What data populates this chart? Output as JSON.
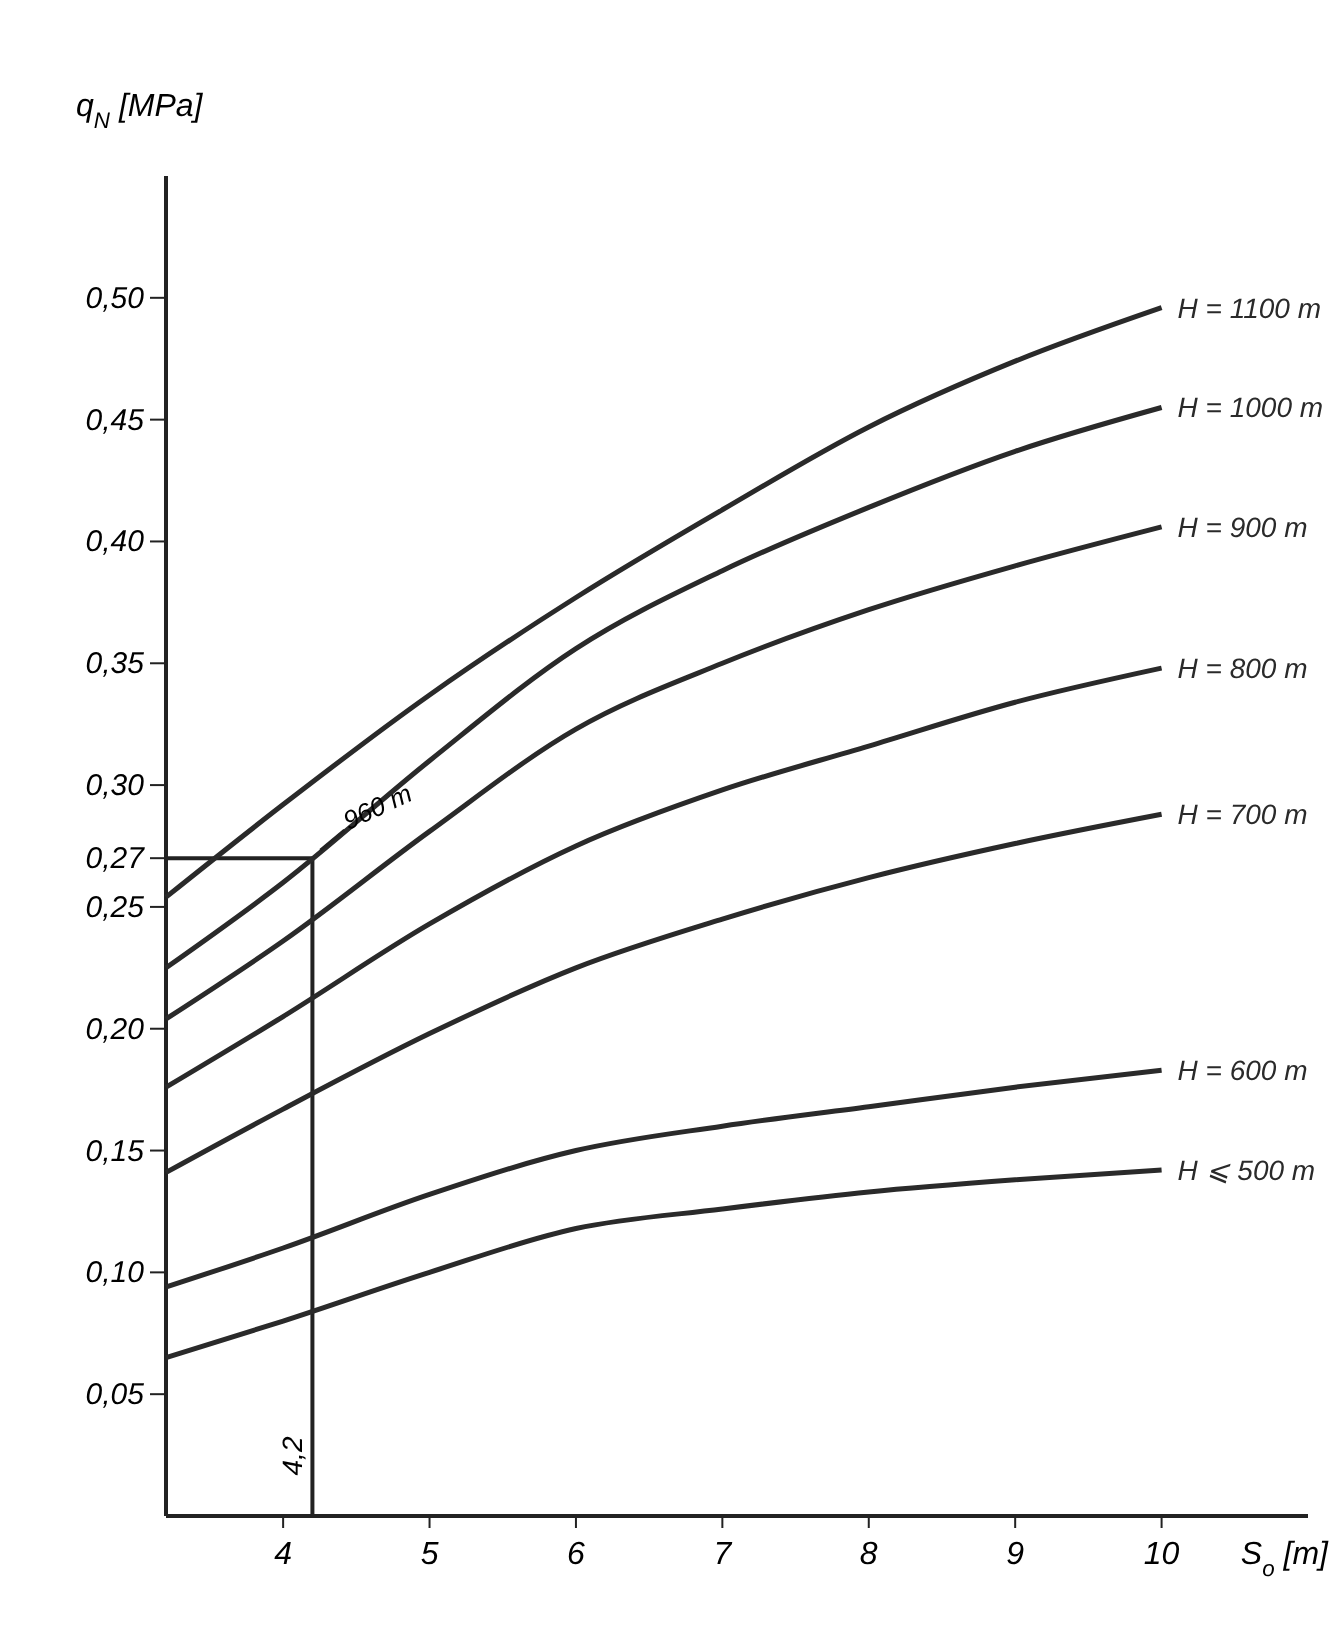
{
  "chart_data": {
    "type": "line",
    "xlabel": "S$_{o}$ [m]",
    "ylabel": "q$_{N}$ [MPa]",
    "x": [
      3.2,
      4,
      5,
      6,
      7,
      8,
      9,
      10
    ],
    "series": [
      {
        "name": "H = 1100 m",
        "color": "#2a2a2a",
        "values": [
          0.254,
          0.292,
          0.337,
          0.377,
          0.413,
          0.447,
          0.474,
          0.496
        ]
      },
      {
        "name": "H = 1000 m",
        "color": "#2a2a2a",
        "values": [
          0.225,
          0.26,
          0.31,
          0.356,
          0.388,
          0.414,
          0.437,
          0.455
        ]
      },
      {
        "name": "H = 900 m",
        "color": "#2a2a2a",
        "values": [
          0.204,
          0.236,
          0.281,
          0.323,
          0.35,
          0.372,
          0.39,
          0.406
        ]
      },
      {
        "name": "H = 800 m",
        "color": "#2a2a2a",
        "values": [
          0.176,
          0.205,
          0.243,
          0.275,
          0.298,
          0.316,
          0.334,
          0.348
        ]
      },
      {
        "name": "H = 700 m",
        "color": "#2a2a2a",
        "values": [
          0.141,
          0.167,
          0.198,
          0.225,
          0.245,
          0.262,
          0.276,
          0.288
        ]
      },
      {
        "name": "H = 600 m",
        "color": "#2a2a2a",
        "values": [
          0.094,
          0.11,
          0.132,
          0.15,
          0.16,
          0.168,
          0.176,
          0.183
        ]
      },
      {
        "name": "H ⩽ 500 m",
        "color": "#2a2a2a",
        "values": [
          0.065,
          0.08,
          0.1,
          0.118,
          0.126,
          0.133,
          0.138,
          0.142
        ]
      }
    ],
    "xlim": [
      3.2,
      11
    ],
    "xticks": [
      4,
      5,
      6,
      7,
      8,
      9,
      10
    ],
    "ylim": [
      0,
      0.55
    ],
    "yticks": [
      {
        "value": 0.05,
        "label": "0,05"
      },
      {
        "value": 0.1,
        "label": "0,10"
      },
      {
        "value": 0.15,
        "label": "0,15"
      },
      {
        "value": 0.2,
        "label": "0,20"
      },
      {
        "value": 0.25,
        "label": "0,25"
      },
      {
        "value": 0.27,
        "label": "0,27"
      },
      {
        "value": 0.3,
        "label": "0,30"
      },
      {
        "value": 0.35,
        "label": "0,35"
      },
      {
        "value": 0.4,
        "label": "0,40"
      },
      {
        "value": 0.45,
        "label": "0,45"
      },
      {
        "value": 0.5,
        "label": "0,50"
      }
    ],
    "ref_lines": [
      {
        "axis": "x",
        "value": 4.2,
        "label": "4,2"
      },
      {
        "axis": "y",
        "value": 0.27
      }
    ],
    "annotations": [
      {
        "text": "960 m",
        "x": 4.2,
        "y": 0.27
      }
    ],
    "grid": false,
    "marker": "none",
    "line_style": "solid"
  }
}
